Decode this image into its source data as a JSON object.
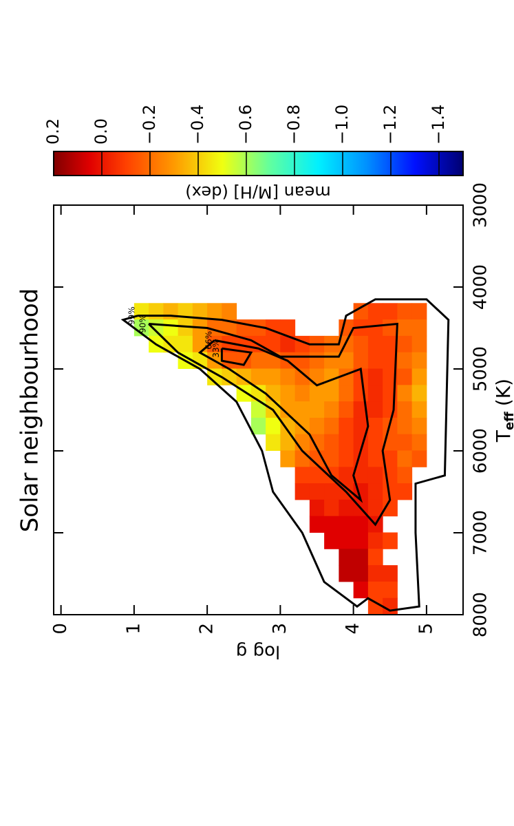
{
  "chart_data": {
    "type": "heatmap",
    "title": "Solar neighbourhood",
    "xlabel": {
      "main": "T",
      "sub": "eff",
      "unit": "(K)"
    },
    "ylabel": "log g",
    "colorbar_label": "mean [M/H] (dex)",
    "xlim": [
      8000,
      3000
    ],
    "xticks": [
      8000,
      7000,
      6000,
      5000,
      4000,
      3000
    ],
    "ylim": [
      -0.1,
      5.5
    ],
    "yticks": [
      0,
      1,
      2,
      3,
      4,
      5
    ],
    "clim": [
      0.2,
      -1.5
    ],
    "cticks": [
      0.2,
      {
        "value": 0,
        "label": "0.0"
      },
      {
        "value": -0.2,
        "label": "−0.2"
      },
      {
        "value": -0.4,
        "label": "−0.4"
      },
      {
        "value": -0.6,
        "label": "−0.6"
      },
      {
        "value": -0.8,
        "label": "−0.8"
      },
      {
        "value": -1.0,
        "label": "−1.0"
      },
      {
        "value": -1.2,
        "label": "−1.2"
      },
      {
        "value": -1.4,
        "label": "−1.4"
      }
    ],
    "colormap": [
      {
        "value": 0.2,
        "color": "#800000"
      },
      {
        "value": 0.05,
        "color": "#e00000"
      },
      {
        "value": -0.1,
        "color": "#ff4000"
      },
      {
        "value": -0.3,
        "color": "#ff9a00"
      },
      {
        "value": -0.5,
        "color": "#f0ff10"
      },
      {
        "value": -0.7,
        "color": "#60ffa0"
      },
      {
        "value": -0.9,
        "color": "#00f0ff"
      },
      {
        "value": -1.1,
        "color": "#0090ff"
      },
      {
        "value": -1.3,
        "color": "#0010ff"
      },
      {
        "value": -1.5,
        "color": "#000070"
      }
    ],
    "cells": {
      "teff": [
        4300,
        4500,
        4700,
        4900,
        5100,
        5300,
        5500,
        5700,
        5900,
        6100,
        6300,
        6500,
        6700,
        6900,
        7100,
        7300,
        7500,
        7700,
        7900
      ],
      "logg": [
        1.1,
        1.3,
        1.5,
        1.7,
        1.9,
        2.1,
        2.3,
        2.5,
        2.7,
        2.9,
        3.1,
        3.3,
        3.5,
        3.7,
        3.9,
        4.1,
        4.3,
        4.5,
        4.7,
        4.9
      ],
      "values": [
        [
          -0.45,
          -0.6,
          null,
          null,
          null,
          null,
          null,
          null,
          null,
          null,
          null,
          null,
          null,
          null,
          null,
          null,
          null,
          null,
          null
        ],
        [
          -0.4,
          -0.55,
          -0.5,
          null,
          null,
          null,
          null,
          null,
          null,
          null,
          null,
          null,
          null,
          null,
          null,
          null,
          null,
          null,
          null
        ],
        [
          -0.35,
          -0.5,
          -0.45,
          null,
          null,
          null,
          null,
          null,
          null,
          null,
          null,
          null,
          null,
          null,
          null,
          null,
          null,
          null,
          null
        ],
        [
          -0.4,
          -0.4,
          -0.45,
          -0.5,
          null,
          null,
          null,
          null,
          null,
          null,
          null,
          null,
          null,
          null,
          null,
          null,
          null,
          null,
          null
        ],
        [
          -0.35,
          -0.3,
          -0.3,
          -0.45,
          null,
          null,
          null,
          null,
          null,
          null,
          null,
          null,
          null,
          null,
          null,
          null,
          null,
          null,
          null
        ],
        [
          -0.3,
          -0.2,
          -0.15,
          -0.3,
          -0.45,
          null,
          null,
          null,
          null,
          null,
          null,
          null,
          null,
          null,
          null,
          null,
          null,
          null,
          null
        ],
        [
          -0.25,
          -0.2,
          -0.1,
          -0.15,
          -0.4,
          null,
          null,
          null,
          null,
          null,
          null,
          null,
          null,
          null,
          null,
          null,
          null,
          null,
          null
        ],
        [
          null,
          -0.15,
          -0.1,
          -0.15,
          -0.35,
          -0.5,
          null,
          null,
          null,
          null,
          null,
          null,
          null,
          null,
          null,
          null,
          null,
          null,
          null
        ],
        [
          null,
          -0.15,
          -0.1,
          -0.2,
          -0.3,
          -0.45,
          -0.55,
          -0.6,
          null,
          null,
          null,
          null,
          null,
          null,
          null,
          null,
          null,
          null,
          null
        ],
        [
          null,
          -0.1,
          -0.1,
          -0.2,
          -0.3,
          -0.35,
          -0.4,
          -0.5,
          -0.45,
          null,
          null,
          null,
          null,
          null,
          null,
          null,
          null,
          null,
          null
        ],
        [
          null,
          -0.1,
          -0.05,
          -0.15,
          -0.25,
          -0.3,
          -0.3,
          -0.35,
          -0.35,
          -0.3,
          null,
          null,
          null,
          null,
          null,
          null,
          null,
          null,
          null
        ],
        [
          null,
          null,
          -0.1,
          -0.15,
          -0.2,
          -0.25,
          -0.3,
          -0.3,
          -0.25,
          -0.2,
          -0.1,
          -0.05,
          null,
          null,
          null,
          null,
          null,
          null,
          null
        ],
        [
          null,
          null,
          -0.15,
          -0.2,
          -0.25,
          -0.3,
          -0.3,
          -0.25,
          -0.2,
          -0.15,
          -0.1,
          -0.05,
          0.0,
          0.05,
          null,
          null,
          null,
          null,
          null
        ],
        [
          null,
          null,
          -0.2,
          -0.25,
          -0.3,
          -0.3,
          -0.25,
          -0.2,
          -0.15,
          -0.15,
          -0.1,
          -0.05,
          -0.05,
          0.05,
          0.05,
          null,
          null,
          null,
          null
        ],
        [
          null,
          -0.15,
          -0.2,
          -0.25,
          -0.2,
          -0.2,
          -0.15,
          -0.1,
          -0.1,
          -0.1,
          -0.05,
          -0.05,
          0.0,
          0.05,
          0.05,
          0.1,
          0.1,
          null,
          null
        ],
        [
          -0.15,
          -0.1,
          -0.15,
          -0.15,
          -0.1,
          -0.1,
          -0.05,
          -0.05,
          -0.05,
          -0.05,
          -0.05,
          0.0,
          0.0,
          0.05,
          0.05,
          0.1,
          0.1,
          0.05,
          null
        ],
        [
          -0.1,
          -0.1,
          -0.1,
          -0.1,
          -0.05,
          -0.05,
          -0.05,
          -0.1,
          -0.1,
          -0.1,
          -0.05,
          -0.05,
          -0.05,
          0.0,
          -0.05,
          -0.1,
          -0.05,
          -0.1,
          -0.1
        ],
        [
          -0.1,
          -0.15,
          -0.1,
          -0.1,
          -0.1,
          -0.1,
          -0.1,
          -0.15,
          -0.15,
          -0.1,
          -0.1,
          -0.1,
          -0.1,
          null,
          -0.1,
          null,
          -0.05,
          -0.1,
          -0.05
        ],
        [
          -0.15,
          -0.2,
          -0.15,
          -0.2,
          -0.15,
          -0.25,
          -0.2,
          -0.2,
          -0.15,
          -0.2,
          -0.15,
          -0.1,
          null,
          null,
          null,
          null,
          null,
          null,
          null
        ],
        [
          -0.15,
          -0.2,
          -0.2,
          -0.25,
          -0.3,
          -0.35,
          -0.3,
          -0.25,
          -0.2,
          -0.15,
          null,
          null,
          null,
          null,
          null,
          null,
          null,
          null,
          null
        ]
      ]
    },
    "contours": [
      {
        "label": "99%",
        "teff": [
          4350,
          4350,
          4400,
          4500,
          4700,
          4700,
          4350,
          4150,
          4150,
          4400,
          6300,
          6400,
          7000,
          7900,
          7950,
          7800,
          7900,
          7600,
          7000,
          6500,
          6000,
          5400,
          5000,
          4700,
          4400,
          4350
        ],
        "logg": [
          1.05,
          1.5,
          2.2,
          2.8,
          3.4,
          3.8,
          3.9,
          4.3,
          5.0,
          5.3,
          5.25,
          4.85,
          4.85,
          4.9,
          4.5,
          4.2,
          4.05,
          3.6,
          3.3,
          2.9,
          2.75,
          2.4,
          1.9,
          1.3,
          0.85,
          1.05
        ]
      },
      {
        "label": "90%",
        "teff": [
          4450,
          4500,
          4650,
          4850,
          4850,
          4500,
          4450,
          5500,
          6000,
          6600,
          6900,
          6500,
          6000,
          5500,
          5100,
          4800,
          4450
        ],
        "logg": [
          1.2,
          2.0,
          2.6,
          3.0,
          3.8,
          4.0,
          4.6,
          4.55,
          4.4,
          4.5,
          4.3,
          3.9,
          3.3,
          2.9,
          2.2,
          1.6,
          1.2
        ]
      },
      {
        "label": "66%",
        "teff": [
          4650,
          4750,
          4900,
          5200,
          5000,
          5700,
          6300,
          6600,
          6300,
          5800,
          5300,
          5000,
          4800,
          4650
        ],
        "logg": [
          2.1,
          2.7,
          3.1,
          3.5,
          4.1,
          4.2,
          4.0,
          4.1,
          3.7,
          3.4,
          2.8,
          2.3,
          1.9,
          2.1
        ]
      },
      {
        "label": "33%",
        "teff": [
          4750,
          4800,
          4950,
          4900,
          4750
        ],
        "logg": [
          2.2,
          2.6,
          2.5,
          2.2,
          2.2
        ]
      }
    ]
  }
}
